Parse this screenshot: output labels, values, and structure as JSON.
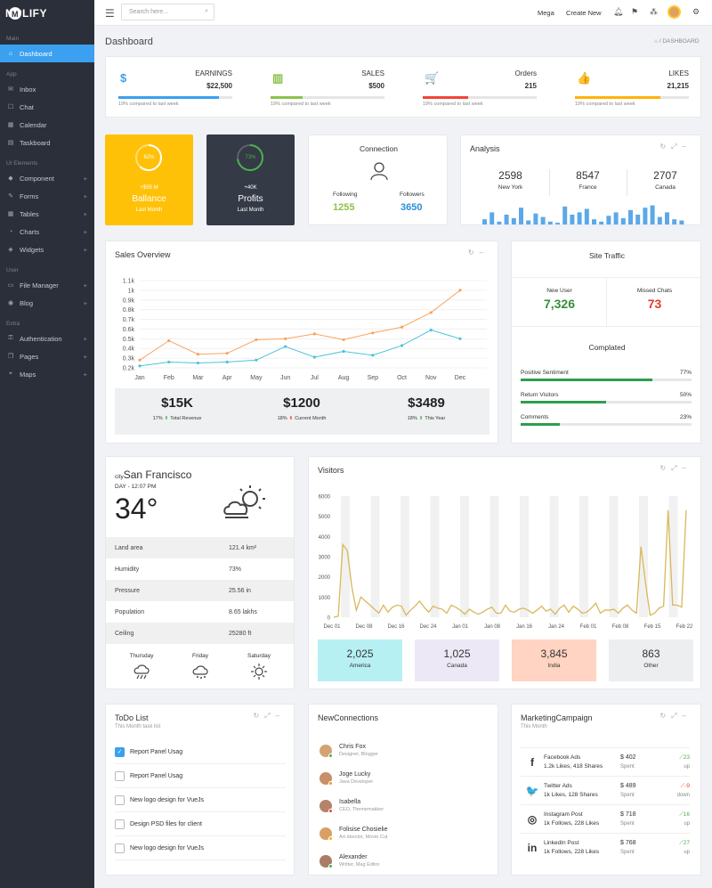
{
  "brand": "MPLIFY",
  "brand_mark": "M",
  "nav": {
    "sections": [
      {
        "label": "Main",
        "items": [
          {
            "label": "Dashboard",
            "icon": "home-icon",
            "active": true
          }
        ]
      },
      {
        "label": "App",
        "items": [
          {
            "label": "Inbox",
            "icon": "inbox-icon"
          },
          {
            "label": "Chat",
            "icon": "chat-icon"
          },
          {
            "label": "Calendar",
            "icon": "calendar-icon"
          },
          {
            "label": "Taskboard",
            "icon": "taskboard-icon"
          }
        ]
      },
      {
        "label": "UI Elements",
        "items": [
          {
            "label": "Component",
            "icon": "diamond-icon",
            "plus": true
          },
          {
            "label": "Forms",
            "icon": "pencil-icon",
            "plus": true
          },
          {
            "label": "Tables",
            "icon": "table-icon",
            "plus": true
          },
          {
            "label": "Charts",
            "icon": "chart-icon",
            "plus": true
          },
          {
            "label": "Widgets",
            "icon": "tag-icon",
            "plus": true
          }
        ]
      },
      {
        "label": "User",
        "items": [
          {
            "label": "File Manager",
            "icon": "folder-icon",
            "plus": true
          },
          {
            "label": "Blog",
            "icon": "globe-icon",
            "plus": true
          }
        ]
      },
      {
        "label": "Extra",
        "items": [
          {
            "label": "Authentication",
            "icon": "lock-icon",
            "plus": true
          },
          {
            "label": "Pages",
            "icon": "pages-icon",
            "plus": true
          },
          {
            "label": "Maps",
            "icon": "map-icon",
            "plus": true
          }
        ]
      }
    ]
  },
  "topbar": {
    "search_placeholder": "Search here...",
    "mega": "Mega",
    "create_new": "Create New"
  },
  "page": {
    "title": "Dashboard",
    "crumb": "DASHBOARD"
  },
  "stats": [
    {
      "label": "EARNINGS",
      "value": "$22,500",
      "compare": "19% compared to last week",
      "color": "#3aa0ef",
      "icon": "$",
      "fill": 0.88
    },
    {
      "label": "SALES",
      "value": "$500",
      "compare": "19% compared to last week",
      "color": "#8bc34a",
      "icon": "▥",
      "fill": 0.28
    },
    {
      "label": "Orders",
      "value": "215",
      "compare": "19% compared to last week",
      "color": "#f44336",
      "icon": "🛒",
      "fill": 0.4
    },
    {
      "label": "LIKES",
      "value": "21,215",
      "compare": "19% compared to last week",
      "color": "#ffb300",
      "icon": "👍",
      "fill": 0.75
    }
  ],
  "balance": {
    "percent": "62%",
    "pct": 0.62,
    "amount": "+$95 M",
    "title": "Ballance",
    "sub": "Last Month"
  },
  "profits": {
    "percent": "73%",
    "pct": 0.73,
    "amount": "+40K",
    "title": "Profits",
    "sub": "Last Month"
  },
  "connection": {
    "title": "Connection",
    "following_label": "Following",
    "following": "1255",
    "followers_label": "Followers",
    "followers": "3650"
  },
  "analysis": {
    "title": "Analysis",
    "cols": [
      {
        "v": "2598",
        "l": "New York"
      },
      {
        "v": "8547",
        "l": "France"
      },
      {
        "v": "2707",
        "l": "Canada"
      }
    ],
    "bars": [
      0.3,
      0.6,
      0.2,
      0.5,
      0.35,
      0.8,
      0.25,
      0.55,
      0.4,
      0.2,
      0.15,
      0.85,
      0.5,
      0.6,
      0.75,
      0.3,
      0.2,
      0.45,
      0.6,
      0.35,
      0.7,
      0.5,
      0.8,
      0.9,
      0.4,
      0.6,
      0.3,
      0.25
    ]
  },
  "sales_overview": {
    "title": "Sales Overview",
    "chart_data": {
      "type": "line",
      "categories": [
        "Jan",
        "Feb",
        "Mar",
        "Apr",
        "May",
        "Jun",
        "Jul",
        "Aug",
        "Sep",
        "Oct",
        "Nov",
        "Dec"
      ],
      "yticks": [
        "0.2k",
        "0.3k",
        "0.4k",
        "0.5k",
        "0.6k",
        "0.7k",
        "0.8k",
        "0.9k",
        "1k",
        "1.1k"
      ],
      "ylim": [
        0.2,
        1.1
      ],
      "series": [
        {
          "color": "#f8a35e",
          "values": [
            0.28,
            0.48,
            0.34,
            0.35,
            0.49,
            0.5,
            0.55,
            0.49,
            0.56,
            0.62,
            0.77,
            1.0
          ]
        },
        {
          "color": "#4fc3d9",
          "values": [
            0.22,
            0.26,
            0.25,
            0.26,
            0.28,
            0.42,
            0.31,
            0.37,
            0.33,
            0.43,
            0.59,
            0.5
          ]
        }
      ]
    },
    "totals": [
      {
        "v": "$15K",
        "p": "17%",
        "arrow": "⬆",
        "t": "Total Revenue",
        "c": "#4caf50"
      },
      {
        "v": "$1200",
        "p": "18%",
        "arrow": "⬇",
        "t": "Current Month",
        "c": "#f44336"
      },
      {
        "v": "$3489",
        "p": "18%",
        "arrow": "⬆",
        "t": "This Year",
        "c": "#4caf50"
      }
    ]
  },
  "site_traffic": {
    "title": "Site Traffic",
    "new_user_label": "New User",
    "new_user": "7,326",
    "missed_label": "Missed Chats",
    "missed": "73",
    "completed_title": "Complated",
    "bars": [
      {
        "label": "Positive Sentiment",
        "pct": "77%",
        "v": 0.77
      },
      {
        "label": "Return Visitors",
        "pct": "50%",
        "v": 0.5
      },
      {
        "label": "Comments",
        "pct": "23%",
        "v": 0.23
      }
    ]
  },
  "weather": {
    "prefix": "city",
    "city": "San Francisco",
    "day": "DAY - 12:07 PM",
    "temp": "34°",
    "rows": [
      {
        "k": "Land area",
        "v": "121.4 km²"
      },
      {
        "k": "Humidity",
        "v": "73%"
      },
      {
        "k": "Pressure",
        "v": "25.56 in"
      },
      {
        "k": "Population",
        "v": "8.65 lakhs"
      },
      {
        "k": "Ceiling",
        "v": "25280 ft"
      }
    ],
    "forecast": [
      {
        "d": "Thursday",
        "icon": "rain-icon"
      },
      {
        "d": "Friday",
        "icon": "cloud-icon"
      },
      {
        "d": "Saturday",
        "icon": "sun-icon"
      }
    ]
  },
  "visitors": {
    "title": "Visitors",
    "chart_data": {
      "type": "line",
      "x_labels": [
        "Dec 01",
        "Dec 08",
        "Dec 16",
        "Dec 24",
        "Jan 01",
        "Jan 08",
        "Jan 16",
        "Jan 24",
        "Feb 01",
        "Feb 08",
        "Feb 15",
        "Feb 22"
      ],
      "yticks": [
        "0",
        "1000",
        "2000",
        "3000",
        "4000",
        "5000",
        "6000"
      ],
      "ylim": [
        0,
        6000
      ],
      "values": [
        0,
        50,
        3600,
        3300,
        1500,
        350,
        1000,
        800,
        600,
        400,
        200,
        600,
        250,
        500,
        600,
        550,
        100,
        350,
        550,
        800,
        500,
        250,
        550,
        450,
        400,
        200,
        600,
        500,
        350,
        150,
        400,
        250,
        150,
        250,
        400,
        500,
        200,
        200,
        600,
        300,
        250,
        400,
        450,
        350,
        200,
        350,
        550,
        300,
        400,
        150,
        450,
        600,
        250,
        550,
        400,
        200,
        250,
        450,
        700,
        200,
        350,
        350,
        400,
        200,
        450,
        600,
        350,
        200,
        3500,
        1700,
        100,
        200,
        450,
        550,
        5300,
        600,
        600,
        500,
        5300
      ]
    },
    "regions": [
      {
        "v": "2,025",
        "l": "America",
        "bg": "#b7f0f3"
      },
      {
        "v": "1,025",
        "l": "Canada",
        "bg": "#ece8f6"
      },
      {
        "v": "3,845",
        "l": "India",
        "bg": "#ffd4c2"
      },
      {
        "v": "863",
        "l": "Other",
        "bg": "#eceeef"
      }
    ]
  },
  "todo": {
    "title": "ToDo List",
    "sub": "This Month task list",
    "items": [
      {
        "t": "Report Panel Usag",
        "done": true
      },
      {
        "t": "Report Panel Usag",
        "done": false
      },
      {
        "t": "New logo design for VueJs",
        "done": false
      },
      {
        "t": "Design PSD files for client",
        "done": false
      },
      {
        "t": "New logo design for VueJs",
        "done": false
      }
    ]
  },
  "new_connections": {
    "title": "NewConnections",
    "people": [
      {
        "n": "Chris Fox",
        "r": "Designer, Blogger",
        "c": "#d4a373",
        "s": "#4caf50"
      },
      {
        "n": "Joge Lucky",
        "r": "Java Developer",
        "c": "#c98f6a",
        "s": "#ff9800"
      },
      {
        "n": "Isabella",
        "r": "CEO, Thememakker",
        "c": "#b5836a",
        "s": "#f44336"
      },
      {
        "n": "Folisise Chosielie",
        "r": "Art director, Movie Cut",
        "c": "#d9a066",
        "s": "#ffb300"
      },
      {
        "n": "Alexander",
        "r": "Writter, Mag Editor",
        "c": "#a87c65",
        "s": "#4caf50"
      }
    ]
  },
  "marketing": {
    "title": "MarketingCampaign",
    "sub": "This Month",
    "rows": [
      {
        "icon": "f",
        "n": "Facebook Ads",
        "s": "1.2k Likes, 418 Shares",
        "p": "$ 402",
        "pl": "Spent",
        "t": "23",
        "tl": "up",
        "c": "#4caf50"
      },
      {
        "icon": "🐦",
        "n": "Twitter Ads",
        "s": "1k Likes, 128 Shares",
        "p": "$ 489",
        "pl": "Spent",
        "t": "-9",
        "tl": "down",
        "c": "#f44336"
      },
      {
        "icon": "◎",
        "n": "Instagram Post",
        "s": "1k Follows, 228 Likes",
        "p": "$ 718",
        "pl": "Spent",
        "t": "16",
        "tl": "up",
        "c": "#4caf50"
      },
      {
        "icon": "in",
        "n": "LinkedIn Post",
        "s": "1k Follows, 228 Likes",
        "p": "$ 768",
        "pl": "Spent",
        "t": "27",
        "tl": "up",
        "c": "#4caf50"
      }
    ]
  }
}
